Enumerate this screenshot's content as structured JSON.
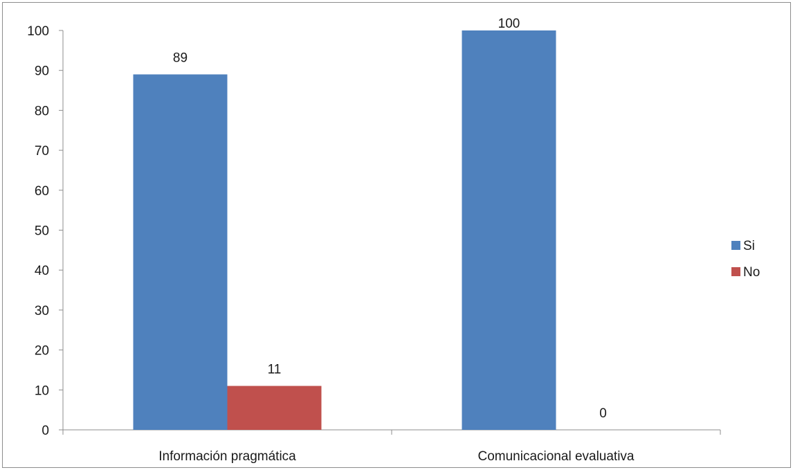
{
  "chart_data": {
    "type": "bar",
    "categories": [
      "Información pragmática",
      "Comunicacional evaluativa"
    ],
    "series": [
      {
        "name": "Si",
        "values": [
          89,
          100
        ],
        "color": "#4f81bd"
      },
      {
        "name": "No",
        "values": [
          11,
          0
        ],
        "color": "#c0504d"
      }
    ],
    "data_labels": [
      [
        "89",
        "100"
      ],
      [
        "11",
        "0"
      ]
    ],
    "ylim": [
      0,
      100
    ],
    "yticks": [
      0,
      10,
      20,
      30,
      40,
      50,
      60,
      70,
      80,
      90,
      100
    ],
    "grid": false,
    "legend_position": "right",
    "title": "",
    "xlabel": "",
    "ylabel": ""
  }
}
